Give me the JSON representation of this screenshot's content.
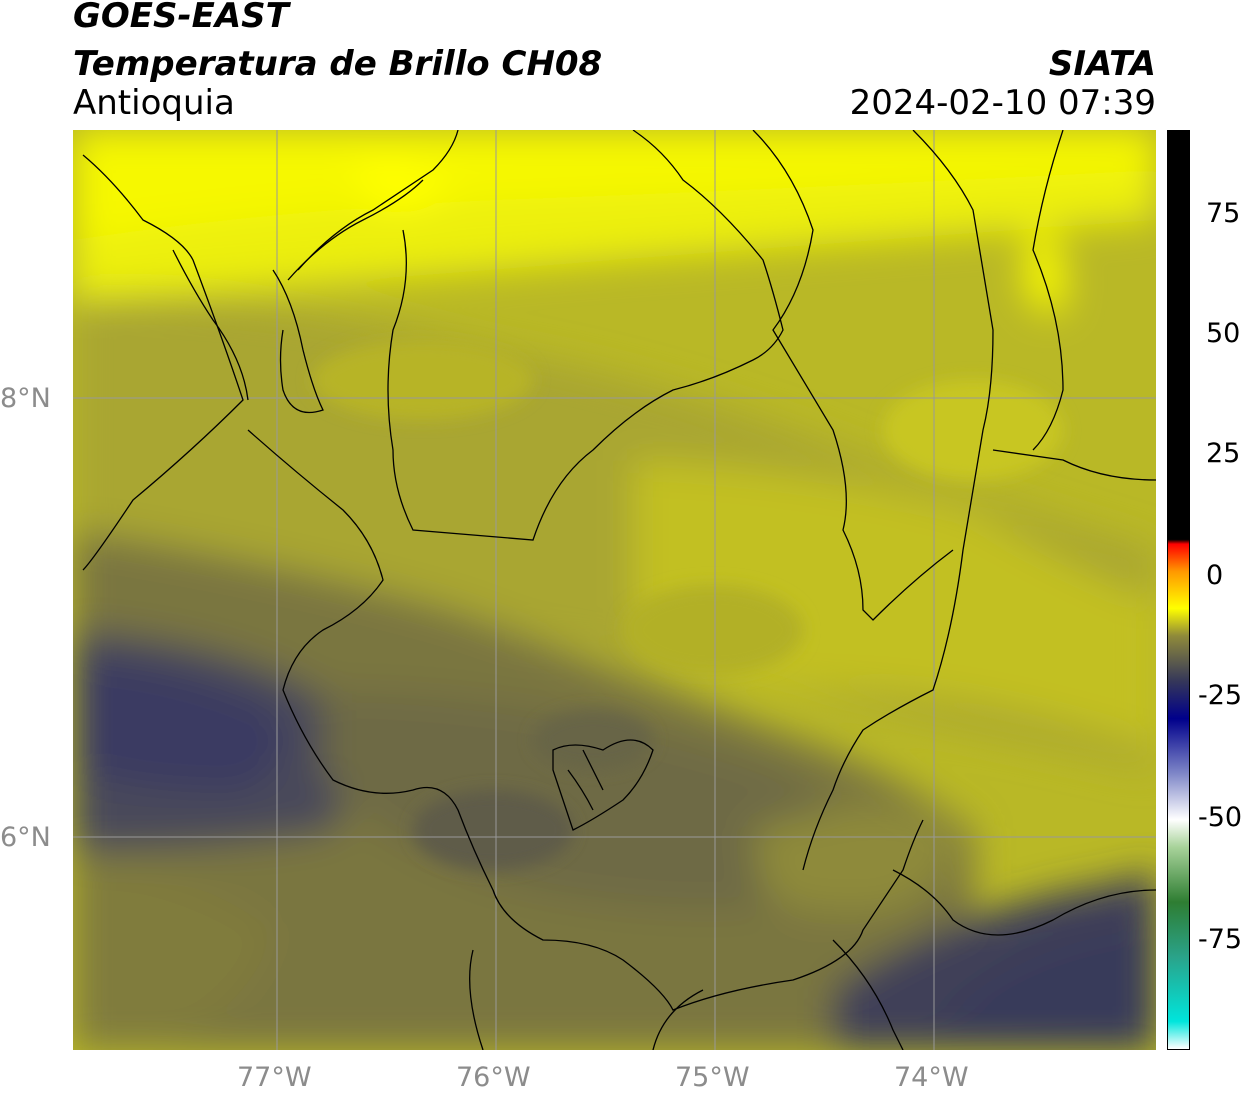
{
  "header": {
    "satellite": "GOES-EAST",
    "product": "Temperatura de Brillo CH08",
    "region": "Antioquia",
    "organization": "SIATA",
    "datetime": "2024-02-10 07:39"
  },
  "axes": {
    "lat_labels": [
      "8°N",
      "6°N"
    ],
    "lon_labels": [
      "77°W",
      "76°W",
      "75°W",
      "74°W"
    ]
  },
  "colorbar": {
    "labels": [
      "75",
      "50",
      "25",
      "0",
      "-25",
      "-50",
      "-75"
    ],
    "stops": [
      {
        "color": "#ffffff",
        "frac": 0.0
      },
      {
        "color": "#00e5dc",
        "frac": 0.03
      },
      {
        "color": "#2aa38a",
        "frac": 0.1
      },
      {
        "color": "#2e7d32",
        "frac": 0.16
      },
      {
        "color": "#a8d39a",
        "frac": 0.22
      },
      {
        "color": "#ffffff",
        "frac": 0.25
      },
      {
        "color": "#7f87c8",
        "frac": 0.3
      },
      {
        "color": "#00008b",
        "frac": 0.36
      },
      {
        "color": "#34365a",
        "frac": 0.4
      },
      {
        "color": "#8f8a3a",
        "frac": 0.45
      },
      {
        "color": "#ffff00",
        "frac": 0.48
      },
      {
        "color": "#ff9900",
        "frac": 0.52
      },
      {
        "color": "#ff0000",
        "frac": 0.55
      },
      {
        "color": "#000000",
        "frac": 0.555
      },
      {
        "color": "#000000",
        "frac": 1.0
      }
    ]
  },
  "colors": {
    "cold_bright": "#ffff00",
    "mid": "#c0be22",
    "olive": "#7e7a3a",
    "dark": "#3e3e5c",
    "grid": "#999999"
  }
}
